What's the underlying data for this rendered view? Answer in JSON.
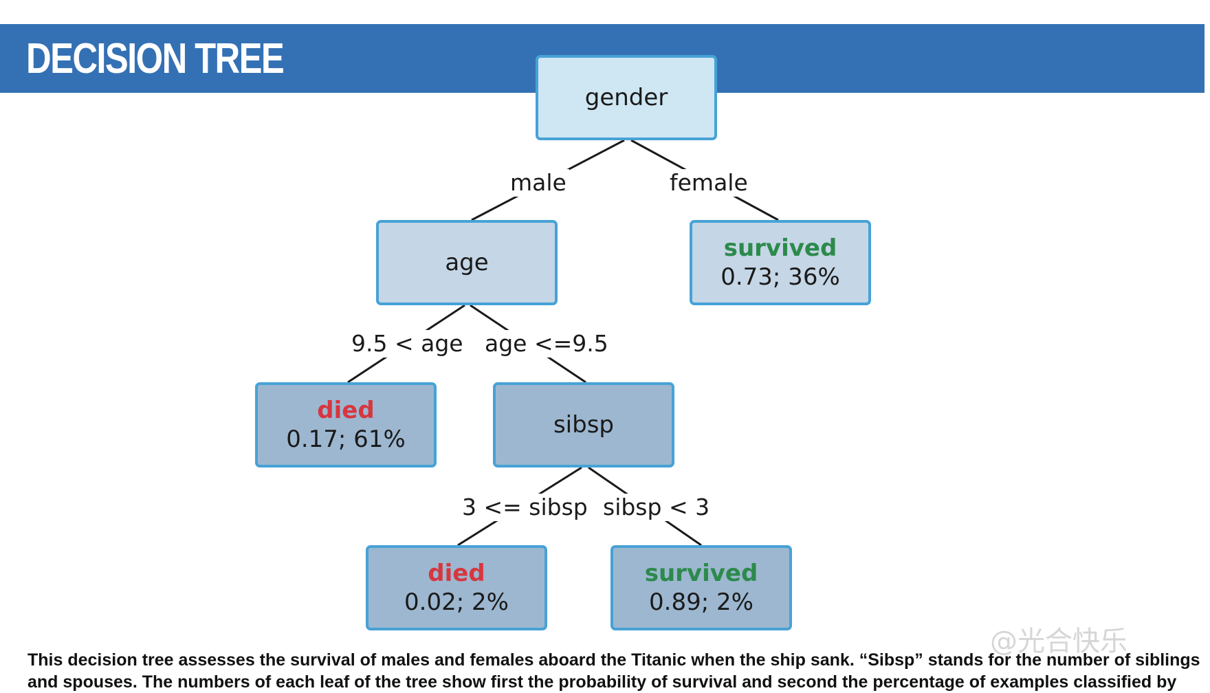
{
  "header": {
    "title": "DECISION TREE"
  },
  "tree": {
    "root": {
      "label": "gender"
    },
    "age": {
      "label": "age"
    },
    "sibsp": {
      "label": "sibsp"
    },
    "leaf_female": {
      "class": "survived",
      "value": "0.73;  36%"
    },
    "leaf_old": {
      "class": "died",
      "value": "0.17;  61%"
    },
    "leaf_many_sib": {
      "class": "died",
      "value": "0.02;  2%"
    },
    "leaf_few_sib": {
      "class": "survived",
      "value": "0.89;  2%"
    },
    "edges": {
      "male": "male",
      "female": "female",
      "age_gt": "9.5 < age",
      "age_le": "age <=9.5",
      "sib_ge": "3 <= sibsp",
      "sib_lt": "sibsp < 3"
    }
  },
  "caption": {
    "line1": "This decision tree assesses the survival of males and females aboard the Titanic when the ship sank. “Sibsp” stands for the number of siblings",
    "line2": "and spouses. The numbers of each leaf of the tree show first the probability of survival and second the percentage of examples classified by"
  },
  "watermark": "@光合快乐",
  "colors": {
    "banner": "#3471b4",
    "node_border": "#47a2d6",
    "died": "#d6373f",
    "survived": "#2c8a4b"
  }
}
